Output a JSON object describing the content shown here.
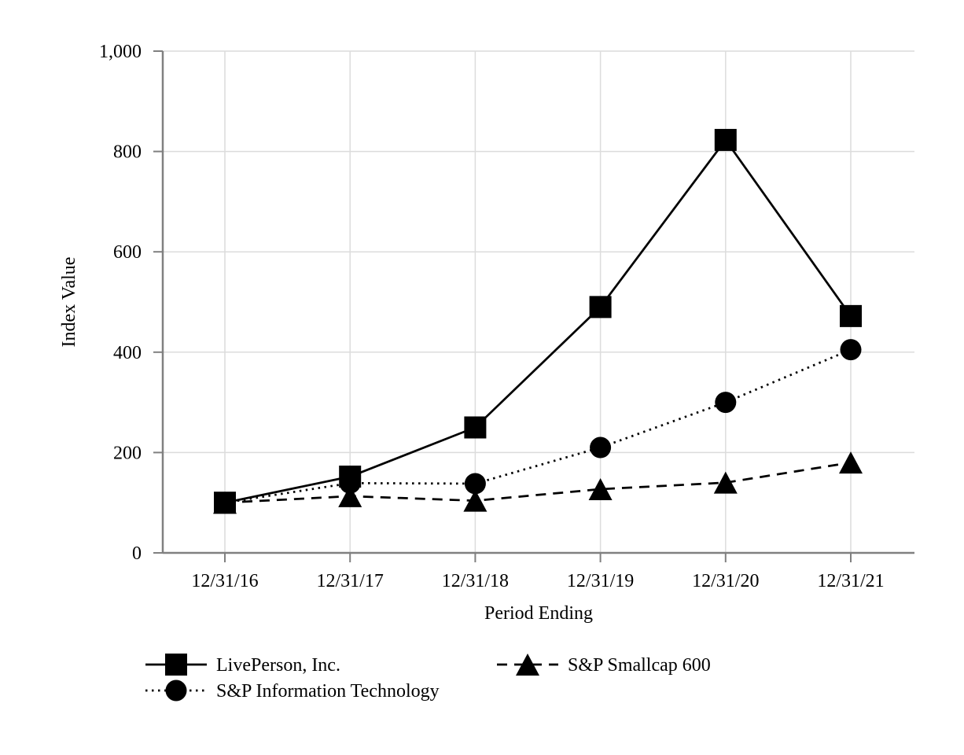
{
  "chart_data": {
    "type": "line",
    "title": "",
    "xlabel": "Period Ending",
    "ylabel": "Index Value",
    "categories": [
      "12/31/16",
      "12/31/17",
      "12/31/18",
      "12/31/19",
      "12/31/20",
      "12/31/21"
    ],
    "series": [
      {
        "name": "LivePerson, Inc.",
        "marker": "square",
        "line_style": "solid",
        "values": [
          100,
          152,
          250,
          490,
          823,
          472
        ]
      },
      {
        "name": "S&P Information Technology",
        "marker": "circle",
        "line_style": "dotted",
        "values": [
          100,
          139,
          138,
          210,
          300,
          405
        ]
      },
      {
        "name": "S&P Smallcap 600",
        "marker": "triangle",
        "line_style": "dashed",
        "values": [
          100,
          113,
          104,
          127,
          140,
          180
        ]
      }
    ],
    "y_ticks": [
      {
        "value": 0,
        "label": "0"
      },
      {
        "value": 200,
        "label": "200"
      },
      {
        "value": 400,
        "label": "400"
      },
      {
        "value": 600,
        "label": "600"
      },
      {
        "value": 800,
        "label": "800"
      },
      {
        "value": 1000,
        "label": "1,000"
      }
    ],
    "ylim": [
      0,
      1000
    ],
    "grid": true,
    "legend_position": "bottom",
    "colors": {
      "series": "#000000",
      "axis": "#808080",
      "gridline": "#dcdcdc",
      "background": "#ffffff",
      "text": "#000000"
    }
  }
}
